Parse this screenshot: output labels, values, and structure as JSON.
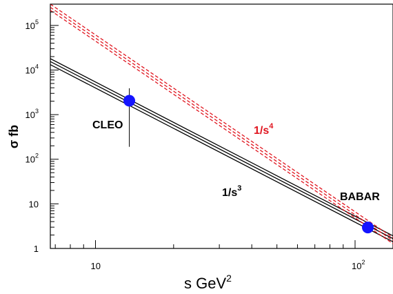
{
  "chart_data": {
    "type": "scatter",
    "title": "",
    "xlabel": {
      "base": "s GeV",
      "sup": "2"
    },
    "ylabel": "σ fb",
    "xscale": "log",
    "yscale": "log",
    "xlim": [
      6.7,
      140
    ],
    "ylim": [
      1,
      300000
    ],
    "grid": false,
    "x_ticks": [
      {
        "value": 10,
        "label": "10",
        "sup": ""
      },
      {
        "value": 100,
        "label": "10",
        "sup": "2"
      }
    ],
    "y_ticks": [
      {
        "value": 1,
        "label": "1",
        "sup": ""
      },
      {
        "value": 10,
        "label": "10",
        "sup": ""
      },
      {
        "value": 100,
        "label": "10",
        "sup": "2"
      },
      {
        "value": 1000,
        "label": "10",
        "sup": "3"
      },
      {
        "value": 10000,
        "label": "10",
        "sup": "4"
      },
      {
        "value": 100000,
        "label": "10",
        "sup": "5"
      }
    ],
    "points": [
      {
        "label": "CLEO",
        "x": 13.5,
        "y": 2050,
        "err_low": 190,
        "err_high": 3900,
        "color": "#1414ff"
      },
      {
        "label": "BABAR",
        "x": 112,
        "y": 2.95,
        "color": "#1414ff"
      }
    ],
    "bands": [
      {
        "label_base": "1/s",
        "label_sup": "3",
        "color": "#000000",
        "dash": false,
        "lines": [
          {
            "x": [
              6.7,
              140
            ],
            "y": [
              18000,
              1.92
            ]
          },
          {
            "x": [
              6.7,
              140
            ],
            "y": [
              15500,
              1.66
            ]
          },
          {
            "x": [
              6.7,
              140
            ],
            "y": [
              13200,
              1.41
            ]
          }
        ]
      },
      {
        "label_base": "1/s",
        "label_sup": "4",
        "color": "#e0141e",
        "dash": true,
        "lines": [
          {
            "x": [
              6.7,
              140
            ],
            "y": [
              300000,
              1.75
            ]
          },
          {
            "x": [
              6.7,
              140
            ],
            "y": [
              255000,
              1.5
            ]
          },
          {
            "x": [
              6.7,
              140
            ],
            "y": [
              218000,
              1.28
            ]
          }
        ]
      }
    ]
  }
}
